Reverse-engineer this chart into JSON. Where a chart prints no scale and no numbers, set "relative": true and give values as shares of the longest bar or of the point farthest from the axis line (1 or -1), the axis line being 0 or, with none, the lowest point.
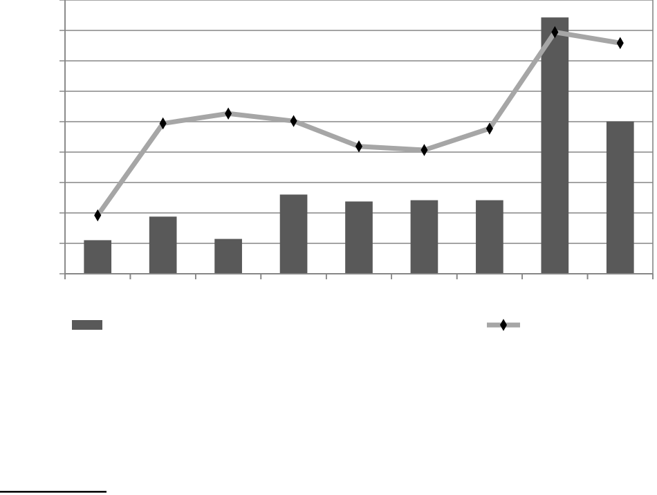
{
  "chart_data": [
    {
      "type": "bar",
      "relative": true,
      "categories": [
        null,
        null,
        null,
        null,
        null,
        null,
        null,
        null,
        null
      ],
      "grid": "y",
      "color": "#595959",
      "values": [
        0.131,
        0.223,
        0.136,
        0.309,
        0.282,
        0.287,
        0.287,
        1.0,
        0.594
      ]
    },
    {
      "type": "line",
      "relative": true,
      "categories": [
        null,
        null,
        null,
        null,
        null,
        null,
        null,
        null,
        null
      ],
      "color": "#a6a6a6",
      "marker": "diamond",
      "values": [
        0.242,
        0.622,
        0.663,
        0.632,
        0.527,
        0.512,
        0.601,
        1.0,
        0.955
      ]
    }
  ]
}
